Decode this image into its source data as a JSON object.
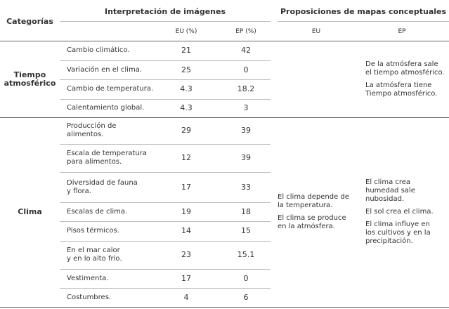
{
  "header": {
    "categories": "Categorías",
    "images": "Interpretación de imágenes",
    "maps": "Proposiciones de mapas conceptuales",
    "eu_pct": "EU (%)",
    "ep_pct": "EP (%)",
    "eu": "EU",
    "ep": "EP"
  },
  "groups": [
    {
      "category": [
        "Tiempo",
        "atmosférico"
      ],
      "rows": [
        {
          "item": [
            "Cambio climático."
          ],
          "eu": 21,
          "ep": 42
        },
        {
          "item": [
            "Variación en el clima."
          ],
          "eu": 25,
          "ep": 0
        },
        {
          "item": [
            "Cambio de temperatura."
          ],
          "eu": 4.3,
          "ep": 18.2
        },
        {
          "item": [
            "Calentamiento global."
          ],
          "eu": 4.3,
          "ep": 3
        }
      ],
      "ep_props": [
        [
          "De la atmósfera sale",
          "el tiempo atmosférico."
        ],
        [
          "La atmósfera tiene",
          "Tiempo atmosférico."
        ]
      ]
    },
    {
      "category": [
        "Clima"
      ],
      "rows": [
        {
          "item": [
            "Producción de",
            "alimentos."
          ],
          "eu": 29,
          "ep": 39
        },
        {
          "item": [
            "Escala de temperatura",
            "para alimentos."
          ],
          "eu": 12,
          "ep": 39
        },
        {
          "item": [
            "Diversidad de fauna",
            "y flora."
          ],
          "eu": 17,
          "ep": 33
        },
        {
          "item": [
            "Escalas de clima."
          ],
          "eu": 19,
          "ep": 18
        },
        {
          "item": [
            "Pisos térmicos."
          ],
          "eu": 14,
          "ep": 15
        },
        {
          "item": [
            "En el mar calor",
            "y en lo alto frio."
          ],
          "eu": 23,
          "ep": 15.1
        },
        {
          "item": [
            "Vestimenta."
          ],
          "eu": 17,
          "ep": 0
        },
        {
          "item": [
            "Costumbres."
          ],
          "eu": 4,
          "ep": 6
        }
      ],
      "eu_props": [
        [
          "El clima depende de",
          "la temperatura."
        ],
        [
          "El clima se produce",
          "en la atmósfera."
        ]
      ],
      "ep_props": [
        [
          "El clima crea",
          "humedad sale",
          "nubosidad."
        ],
        [
          "El sol crea el clima."
        ],
        [
          "El clima influye en",
          "los cultivos y en la",
          "precipitación."
        ]
      ]
    }
  ]
}
